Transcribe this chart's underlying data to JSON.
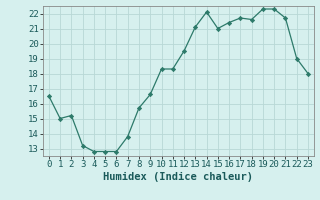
{
  "x": [
    0,
    1,
    2,
    3,
    4,
    5,
    6,
    7,
    8,
    9,
    10,
    11,
    12,
    13,
    14,
    15,
    16,
    17,
    18,
    19,
    20,
    21,
    22,
    23
  ],
  "y": [
    16.5,
    15.0,
    15.2,
    13.2,
    12.8,
    12.8,
    12.8,
    13.8,
    15.7,
    16.6,
    18.3,
    18.3,
    19.5,
    21.1,
    22.1,
    21.0,
    21.4,
    21.7,
    21.6,
    22.3,
    22.3,
    21.7,
    19.0,
    18.0
  ],
  "line_color": "#2d7a6a",
  "marker": "D",
  "marker_size": 2.2,
  "xlabel": "Humidex (Indice chaleur)",
  "xlim": [
    -0.5,
    23.5
  ],
  "ylim": [
    12.5,
    22.5
  ],
  "yticks": [
    13,
    14,
    15,
    16,
    17,
    18,
    19,
    20,
    21,
    22
  ],
  "xticks": [
    0,
    1,
    2,
    3,
    4,
    5,
    6,
    7,
    8,
    9,
    10,
    11,
    12,
    13,
    14,
    15,
    16,
    17,
    18,
    19,
    20,
    21,
    22,
    23
  ],
  "bg_color": "#d6f0ee",
  "grid_color": "#b8d8d6",
  "label_fontsize": 7.5,
  "tick_fontsize": 6.5,
  "linewidth": 0.9
}
